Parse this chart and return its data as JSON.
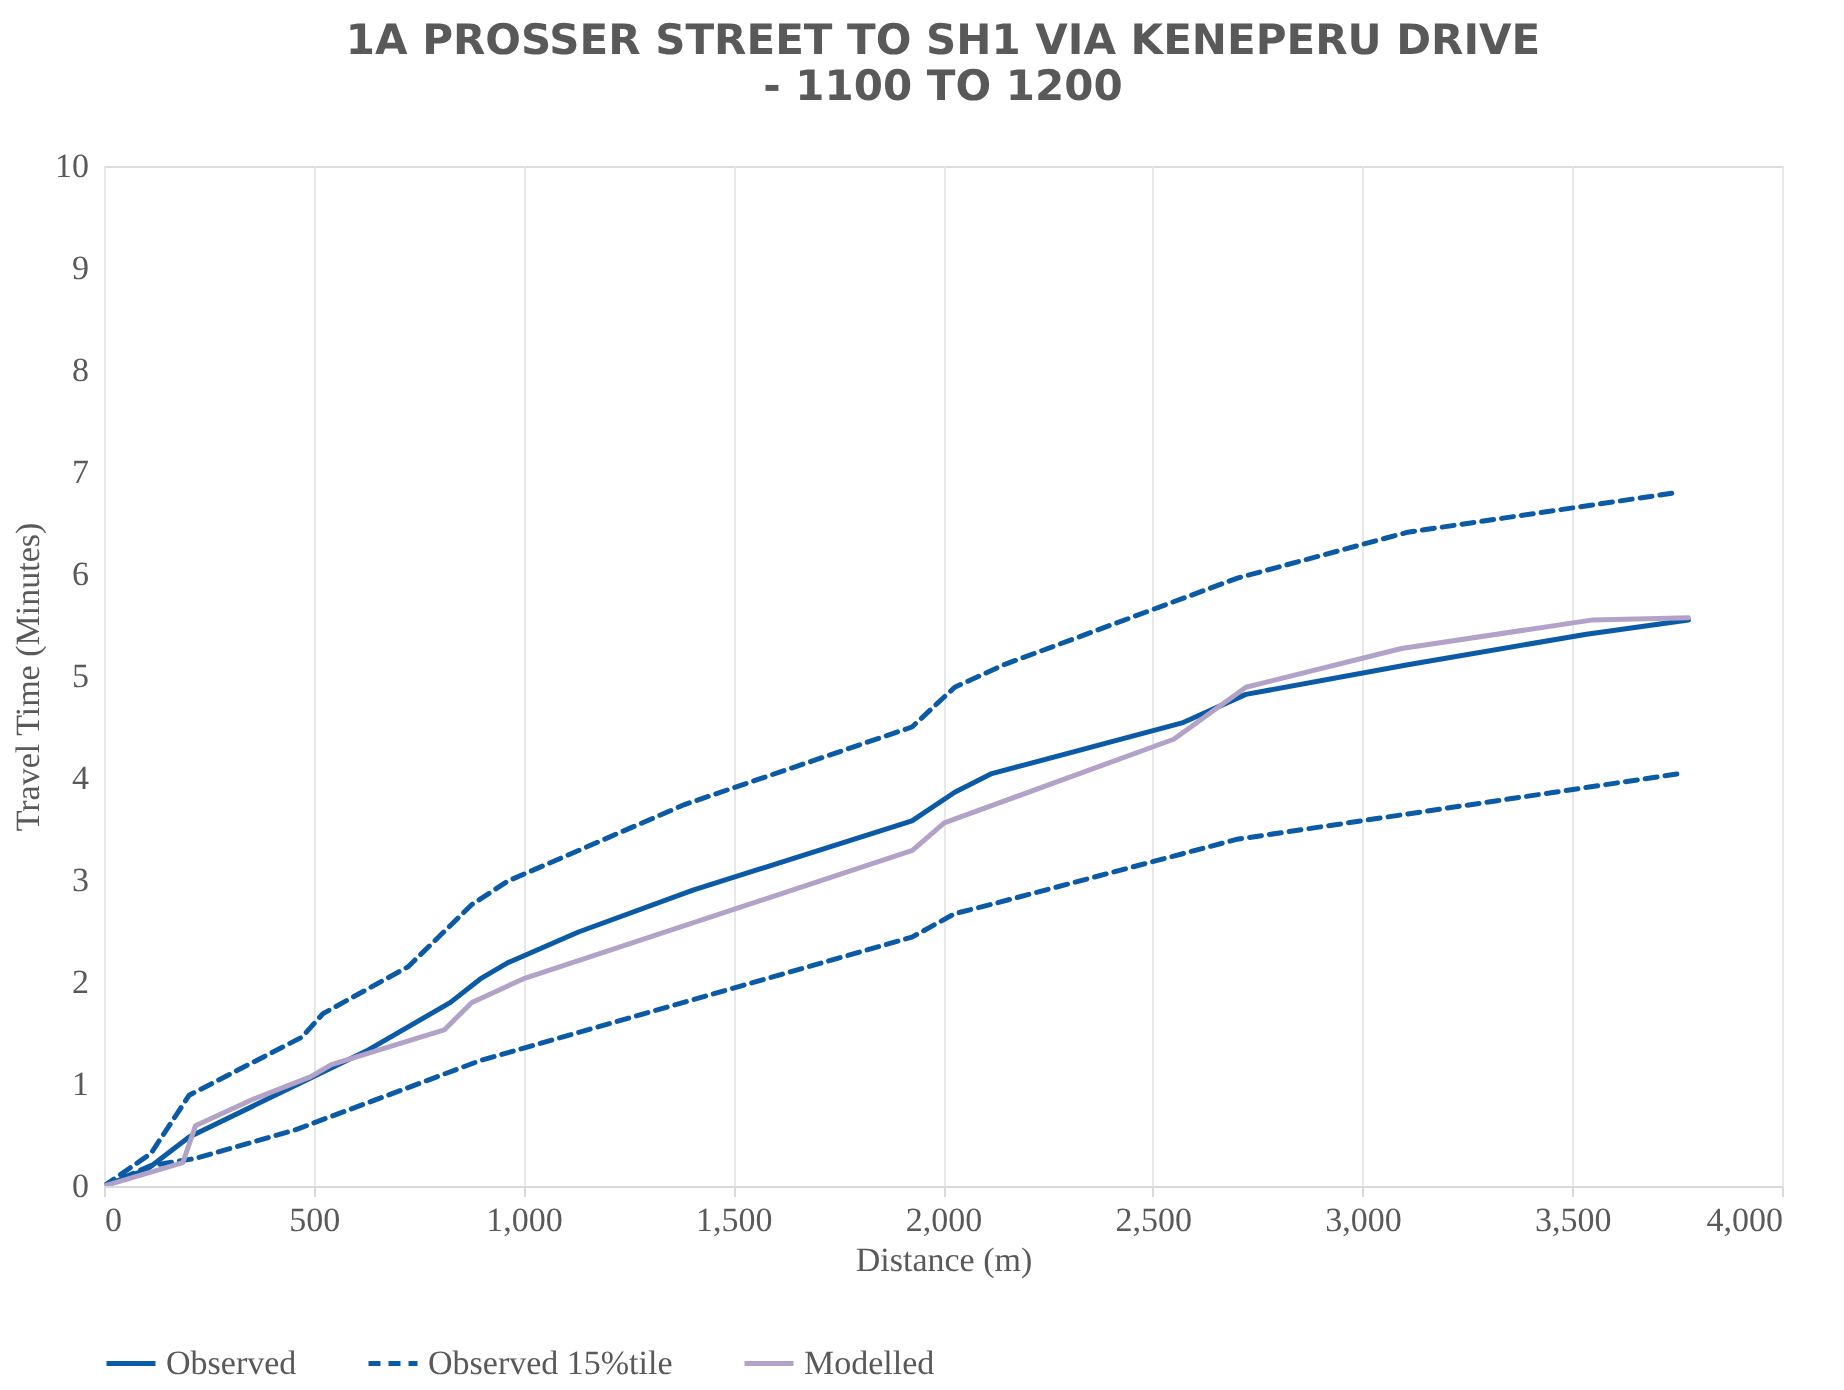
{
  "chart_data": {
    "type": "line",
    "title": [
      "1A PROSSER STREET TO SH1 VIA KENEPERU DRIVE",
      "- 1100 TO 1200"
    ],
    "xlabel": "Distance (m)",
    "ylabel": "Travel Time (Minutes)",
    "xlim": [
      0,
      4000
    ],
    "xticks": [
      {
        "value": 0,
        "label": "0"
      },
      {
        "value": 500,
        "label": "500"
      },
      {
        "value": 1000,
        "label": "1,000"
      },
      {
        "value": 1500,
        "label": "1,500"
      },
      {
        "value": 2000,
        "label": "2,000"
      },
      {
        "value": 2500,
        "label": "2,500"
      },
      {
        "value": 3000,
        "label": "3,000"
      },
      {
        "value": 3500,
        "label": "3,500"
      },
      {
        "value": 4000,
        "label": "4,000"
      }
    ],
    "ylim": [
      0,
      10
    ],
    "yticks": [
      0,
      1,
      2,
      3,
      4,
      5,
      6,
      7,
      8,
      9,
      10
    ],
    "grid": "x",
    "legend": "bottom",
    "marker": "none",
    "series": [
      {
        "name": "Observed",
        "color": "#0b5aa5",
        "line_style": "solid",
        "x": [
          0,
          101,
          203,
          624,
          826,
          897,
          963,
          1131,
          1404,
          1911,
          1926,
          2028,
          2114,
          2570,
          2722,
          3108,
          3534,
          3777
        ],
        "values": [
          0,
          0.16,
          0.48,
          1.32,
          1.8,
          2.03,
          2.19,
          2.49,
          2.9,
          3.56,
          3.58,
          3.86,
          4.04,
          4.54,
          4.82,
          5.11,
          5.41,
          5.55
        ]
      },
      {
        "name": "Observed 15%tile",
        "color": "#0b5aa5",
        "line_style": "dashed",
        "x": [
          0,
          112,
          203,
          472,
          522,
          725,
          877,
          963,
          1384,
          1926,
          2028,
          2145,
          2702,
          3108,
          3752
        ],
        "values": [
          0,
          0.32,
          0.89,
          1.46,
          1.69,
          2.15,
          2.76,
          2.99,
          3.74,
          4.5,
          4.89,
          5.11,
          5.96,
          6.41,
          6.8
        ]
      },
      {
        "color": "#0b5aa5",
        "line_style": "dashed",
        "x": [
          0,
          112,
          218,
          456,
          897,
          1926,
          2028,
          2114,
          2702,
          3752
        ],
        "values": [
          0,
          0.2,
          0.27,
          0.55,
          1.23,
          2.44,
          2.67,
          2.76,
          3.4,
          4.04
        ]
      },
      {
        "name": "Modelled",
        "color": "#b3a2c7",
        "line_style": "solid",
        "x": [
          0,
          188,
          218,
          355,
          492,
          542,
          811,
          877,
          999,
          1927,
          2003,
          2550,
          2722,
          3093,
          3549,
          3777
        ],
        "values": [
          0,
          0.23,
          0.59,
          0.85,
          1.07,
          1.19,
          1.53,
          1.8,
          2.03,
          3.29,
          3.56,
          4.38,
          4.89,
          5.27,
          5.55,
          5.57
        ]
      }
    ]
  }
}
